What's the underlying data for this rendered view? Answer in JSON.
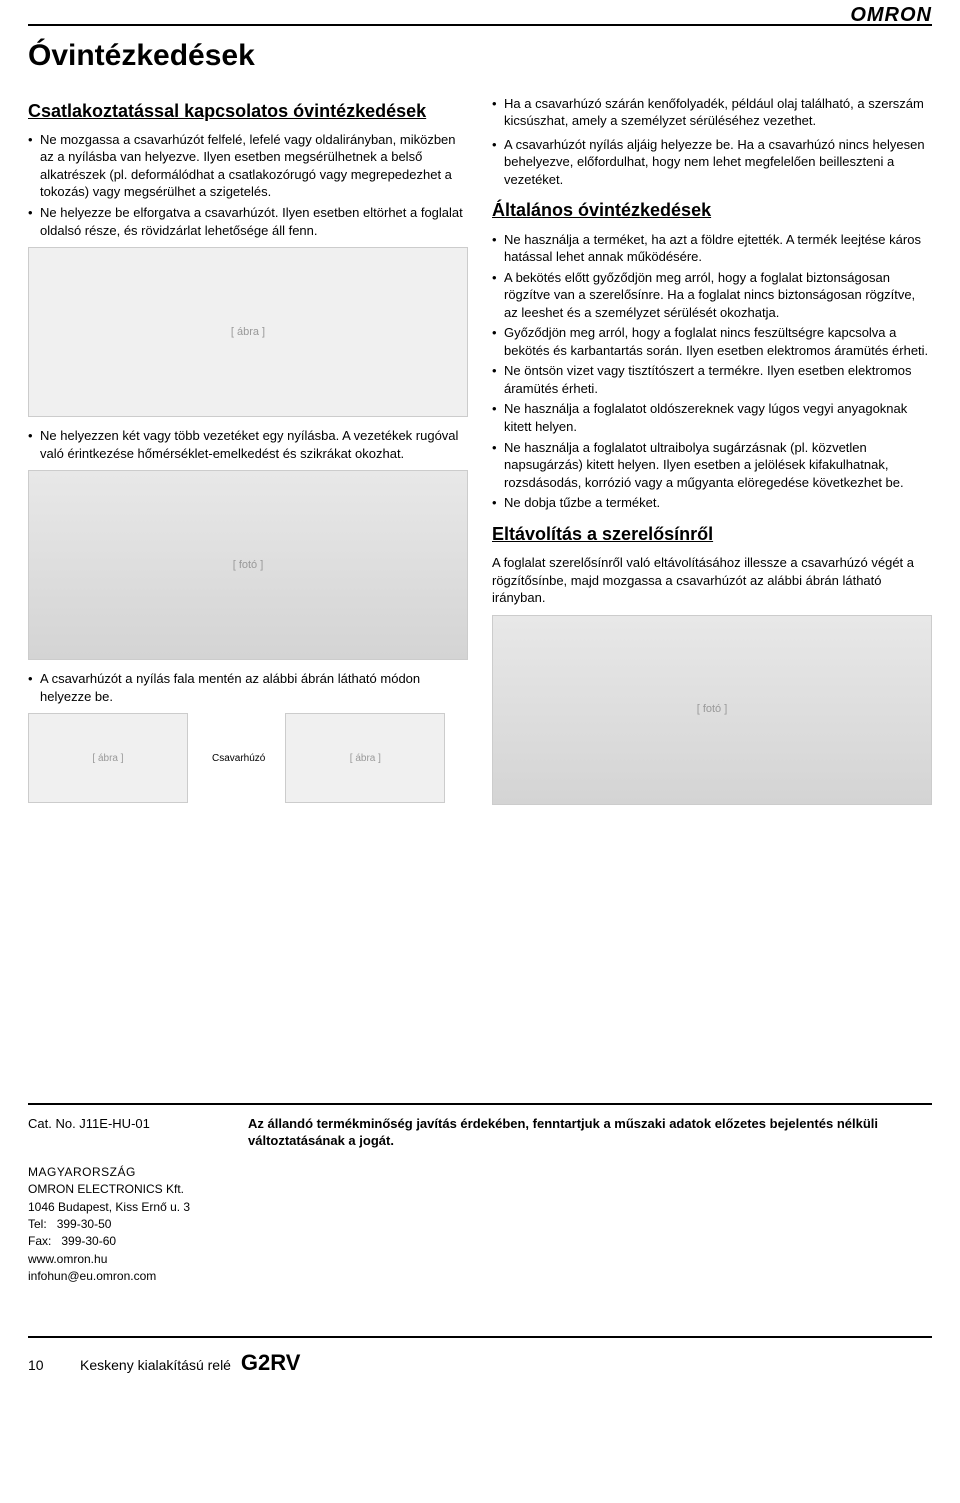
{
  "brand": "OMRON",
  "page_title": "Óvintézkedések",
  "left": {
    "section1_title": "Csatlakoztatással kapcsolatos óvintézkedések",
    "b1": "Ne mozgassa a csavarhúzót felfelé, lefelé vagy oldalirányban, miközben az a nyílásba van helyezve. Ilyen esetben megsérülhetnek a belső alkatrészek (pl. deformálódhat a csatlakozórugó vagy megrepedezhet a tokozás) vagy megsérülhet a szigetelés.",
    "b2": "Ne helyezze be elforgatva a csavarhúzót. Ilyen esetben eltörhet a foglalat oldalsó része, és rövidzárlat lehetősége áll fenn.",
    "b3": "Ne helyezzen két vagy több vezetéket egy nyílásba. A vezetékek rugóval való érintkezése hőmérséklet-emelkedést és szikrákat okozhat.",
    "b4": "A csavarhúzót a nyílás fala mentén az alábbi ábrán látható módon helyezze be.",
    "diagram_label": "Csavarhúzó"
  },
  "right": {
    "b1": "Ha a csavarhúzó szárán kenőfolyadék, például olaj található, a szerszám kicsúszhat, amely a személyzet sérüléséhez vezethet.",
    "b2": "A csavarhúzót nyílás aljáig helyezze be. Ha a csavarhúzó nincs helyesen behelyezve, előfordulhat, hogy nem lehet megfelelően beilleszteni a vezetéket.",
    "section2_title": "Általános óvintézkedések",
    "g1": "Ne használja a terméket, ha azt a földre ejtették. A termék leejtése káros hatással lehet annak működésére.",
    "g2": "A bekötés előtt győződjön meg arról, hogy a foglalat biztonságosan rögzítve van a szerelősínre. Ha a foglalat nincs biztonságosan rögzítve, az leeshet és a személyzet sérülését okozhatja.",
    "g3": "Győződjön meg arról, hogy a foglalat nincs feszültségre kapcsolva a bekötés és karbantartás során. Ilyen esetben elektromos áramütés érheti.",
    "g4": "Ne öntsön vizet vagy tisztítószert a termékre. Ilyen esetben elektromos áramütés érheti.",
    "g5": "Ne használja a foglalatot oldószereknek vagy lúgos vegyi anyagoknak kitett helyen.",
    "g6": "Ne használja a foglalatot ultraibolya sugárzásnak (pl. közvetlen napsugárzás) kitett helyen. Ilyen esetben a jelölések kifakulhatnak, rozsdásodás, korrózió vagy a műgyanta elöregedése következhet be.",
    "g7": "Ne dobja tűzbe a terméket.",
    "section3_title": "Eltávolítás a szerelősínről",
    "s3_intro": "A foglalat szerelősínről való eltávolításához illessze a csavarhúzó végét a rögzítősínbe, majd mozgassa a csavarhúzót az alábbi ábrán látható irányban."
  },
  "footer": {
    "cat_no": "Cat. No. J11E-HU-01",
    "disclaimer": "Az állandó termékminőség javítás érdekében, fenntartjuk a műszaki adatok előzetes bejelentés nélküli változtatásának a jogát.",
    "country": "MAGYARORSZÁG",
    "company": "OMRON ELECTRONICS Kft.",
    "addr1": "1046 Budapest, Kiss Ernő u. 3",
    "tel_label": "Tel:",
    "tel": "399-30-50",
    "fax_label": "Fax:",
    "fax": "399-30-60",
    "web": "www.omron.hu",
    "email": "infohun@eu.omron.com",
    "page_num": "10",
    "foot_title": "Keskeny kialakítású relé",
    "product": "G2RV"
  }
}
